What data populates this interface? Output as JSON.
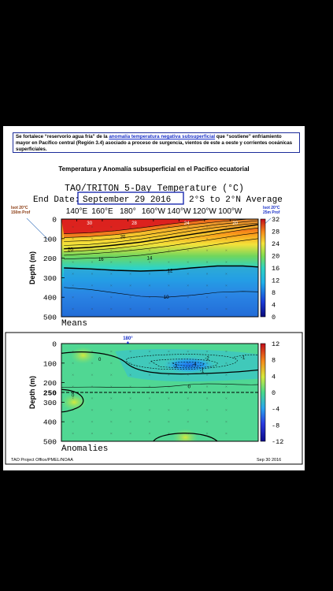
{
  "note": {
    "part1": "Se fortalece “reservorio agua fría” de la ",
    "highlight": "anomalía temperatura negativa subsuperficial",
    "part2": " que “sostiene” enfriamiento mayor en Pacífico central (Región 3.4) asociado a proceso de surgencia, vientos de este a oeste y corrientes oceánicas superficiales."
  },
  "sheet_title": "Temperatura y Anomalía subsuperficial en el Pacífico ecuatorial",
  "plot_title": "TAO/TRITON 5-Day Temperature (°C)",
  "end_date_label": "End Date:",
  "end_date_value": "September 29 2016",
  "average_label": "2°S to 2°N Average",
  "left_note": "Isot 20°C 150m Prof",
  "right_note": "Isot 20°C 25m Prof",
  "top_marker": "180°",
  "means_label": "Means",
  "anomalies_label": "Anomalies",
  "footer_left": "TAO Project Office/PMEL/NOAA",
  "footer_right": "Sep 30 2016",
  "colors": {
    "hot": "#d2141e",
    "cold": "#0b1a9a",
    "anomaly_mid": "#44d88a",
    "note_blue": "#1930c8"
  },
  "chart_data": [
    {
      "type": "heatmap",
      "title": "Means",
      "xlabel": "",
      "ylabel": "Depth (m)",
      "x_ticks": [
        "140°E",
        "160°E",
        "180°",
        "160°W",
        "140°W",
        "120°W",
        "100°W"
      ],
      "y_ticks": [
        "0",
        "100",
        "200",
        "300",
        "400",
        "500"
      ],
      "ylim": [
        500,
        0
      ],
      "colorbar": {
        "ticks": [
          32,
          28,
          24,
          20,
          16,
          12,
          8,
          4,
          0
        ],
        "range": [
          0,
          32
        ]
      },
      "contour_labels": [
        {
          "lon": 150,
          "depth": 20,
          "value": "30"
        },
        {
          "lon": 185,
          "depth": 20,
          "value": "28"
        },
        {
          "lon": 226,
          "depth": 20,
          "value": "24"
        },
        {
          "lon": 264,
          "depth": 20,
          "value": "20"
        },
        {
          "lon": 176,
          "depth": 90,
          "value": "20"
        },
        {
          "lon": 135,
          "depth": 155,
          "value": "20"
        },
        {
          "lon": 159,
          "depth": 205,
          "value": "16"
        },
        {
          "lon": 197,
          "depth": 200,
          "value": "14"
        },
        {
          "lon": 213,
          "depth": 265,
          "value": "12"
        },
        {
          "lon": 210,
          "depth": 400,
          "value": "10"
        }
      ],
      "isotherms": [
        {
          "value": 28,
          "bold": false,
          "points": [
            [
              130,
              75
            ],
            [
              150,
              70
            ],
            [
              170,
              60
            ],
            [
              190,
              45
            ],
            [
              210,
              28
            ],
            [
              230,
              12
            ],
            [
              245,
              0
            ]
          ]
        },
        {
          "value": 26,
          "bold": false,
          "points": [
            [
              130,
              95
            ],
            [
              150,
              90
            ],
            [
              170,
              80
            ],
            [
              190,
              65
            ],
            [
              210,
              45
            ],
            [
              230,
              28
            ],
            [
              250,
              14
            ],
            [
              265,
              5
            ],
            [
              275,
              0
            ]
          ]
        },
        {
          "value": 24,
          "bold": false,
          "points": [
            [
              130,
              115
            ],
            [
              150,
              110
            ],
            [
              170,
              100
            ],
            [
              190,
              85
            ],
            [
              210,
              65
            ],
            [
              230,
              45
            ],
            [
              250,
              28
            ],
            [
              270,
              15
            ],
            [
              282,
              8
            ]
          ]
        },
        {
          "value": 22,
          "bold": false,
          "points": [
            [
              130,
              135
            ],
            [
              150,
              130
            ],
            [
              170,
              118
            ],
            [
              190,
              102
            ],
            [
              210,
              82
            ],
            [
              230,
              60
            ],
            [
              250,
              42
            ],
            [
              270,
              28
            ],
            [
              282,
              20
            ]
          ]
        },
        {
          "value": 20,
          "bold": true,
          "points": [
            [
              130,
              152
            ],
            [
              150,
              145
            ],
            [
              170,
              133
            ],
            [
              190,
              118
            ],
            [
              210,
              98
            ],
            [
              230,
              78
            ],
            [
              250,
              58
            ],
            [
              270,
              40
            ],
            [
              282,
              28
            ]
          ]
        },
        {
          "value": 18,
          "bold": false,
          "points": [
            [
              130,
              168
            ],
            [
              150,
              160
            ],
            [
              170,
              150
            ],
            [
              190,
              135
            ],
            [
              210,
              115
            ],
            [
              230,
              95
            ],
            [
              250,
              75
            ],
            [
              270,
              55
            ],
            [
              282,
              45
            ]
          ]
        },
        {
          "value": 16,
          "bold": false,
          "points": [
            [
              130,
              185
            ],
            [
              150,
              178
            ],
            [
              170,
              168
            ],
            [
              190,
              155
            ],
            [
              210,
              140
            ],
            [
              230,
              120
            ],
            [
              250,
              100
            ],
            [
              270,
              80
            ],
            [
              282,
              70
            ]
          ]
        },
        {
          "value": 14,
          "bold": false,
          "points": [
            [
              130,
              205
            ],
            [
              150,
              200
            ],
            [
              170,
              195
            ],
            [
              190,
              185
            ],
            [
              210,
              168
            ],
            [
              230,
              150
            ],
            [
              250,
              130
            ],
            [
              270,
              110
            ],
            [
              282,
              100
            ]
          ]
        },
        {
          "value": 12,
          "bold": true,
          "points": [
            [
              130,
              250
            ],
            [
              150,
              255
            ],
            [
              170,
              262
            ],
            [
              190,
              266
            ],
            [
              210,
              262
            ],
            [
              230,
              250
            ],
            [
              250,
              240
            ],
            [
              270,
              240
            ],
            [
              282,
              245
            ]
          ]
        },
        {
          "value": 10,
          "bold": false,
          "points": [
            [
              130,
              350
            ],
            [
              150,
              360
            ],
            [
              170,
              378
            ],
            [
              190,
              395
            ],
            [
              210,
              400
            ],
            [
              230,
              390
            ],
            [
              250,
              375
            ],
            [
              270,
              370
            ],
            [
              282,
              372
            ]
          ]
        }
      ]
    },
    {
      "type": "heatmap",
      "title": "Anomalies",
      "xlabel": "",
      "ylabel": "Depth (m)",
      "x_ticks": [
        "180°"
      ],
      "y_ticks": [
        "0",
        "100",
        "200",
        "250",
        "300",
        "400",
        "500"
      ],
      "ylim": [
        500,
        0
      ],
      "colorbar": {
        "ticks": [
          12,
          8,
          4,
          0,
          -4,
          -8,
          -12
        ],
        "range": [
          -12,
          12
        ]
      },
      "reference_line_depth": 250,
      "contour_labels": [
        {
          "lon": 158,
          "depth": 80,
          "value": "0"
        },
        {
          "lon": 217,
          "depth": 115,
          "value": "-3"
        },
        {
          "lon": 232,
          "depth": 105,
          "value": "-4"
        },
        {
          "lon": 242,
          "depth": 75,
          "value": "-2"
        },
        {
          "lon": 270,
          "depth": 70,
          "value": "-1"
        },
        {
          "lon": 238,
          "depth": 140,
          "value": "-1"
        },
        {
          "lon": 228,
          "depth": 220,
          "value": "0"
        },
        {
          "lon": 137,
          "depth": 265,
          "value": "0"
        }
      ],
      "anomaly_features": [
        {
          "kind": "negative-core",
          "lon": 228,
          "depth": 110,
          "value": -4
        },
        {
          "kind": "warm-patch",
          "lon": 145,
          "depth": 60,
          "value": 1
        },
        {
          "kind": "warm-patch",
          "lon": 138,
          "depth": 300,
          "value": 2
        },
        {
          "kind": "warm-patch",
          "lon": 225,
          "depth": 480,
          "value": 1
        }
      ]
    }
  ]
}
